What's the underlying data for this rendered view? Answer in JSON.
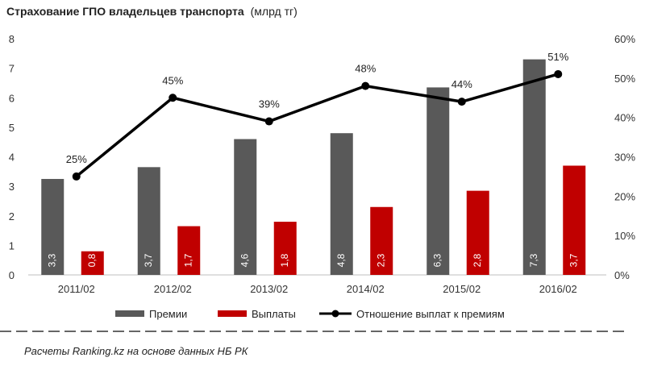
{
  "title": "Страхование  ГПО владельцев  транспорта",
  "title_unit": "(млрд тг)",
  "source": "Расчеты Ranking.kz на основе данных  НБ РК",
  "colors": {
    "premii": "#595959",
    "vyplaty": "#c00000",
    "ratio": "#000000"
  },
  "chart_data": {
    "type": "bar+line",
    "title": "Страхование  ГПО владельцев  транспорта (млрд тг)",
    "categories": [
      "2011/02",
      "2012/02",
      "2013/02",
      "2014/02",
      "2015/02",
      "2016/02"
    ],
    "series": [
      {
        "name": "Премии",
        "kind": "bar",
        "axis": "left",
        "values": [
          3.25,
          3.65,
          4.6,
          4.8,
          6.35,
          7.3
        ],
        "labels": [
          "3,3",
          "3,7",
          "4,6",
          "4,8",
          "6,3",
          "7,3"
        ]
      },
      {
        "name": "Выплаты",
        "kind": "bar",
        "axis": "left",
        "values": [
          0.8,
          1.65,
          1.8,
          2.3,
          2.85,
          3.7
        ],
        "labels": [
          "0,8",
          "1,7",
          "1,8",
          "2,3",
          "2,8",
          "3,7"
        ]
      },
      {
        "name": "Отношение выплат к премиям",
        "kind": "line",
        "axis": "right",
        "values": [
          25,
          45,
          39,
          48,
          44,
          51
        ],
        "labels": [
          "25%",
          "45%",
          "39%",
          "48%",
          "44%",
          "51%"
        ]
      }
    ],
    "y_left": {
      "min": 0,
      "max": 8,
      "ticks": [
        "0",
        "1",
        "2",
        "3",
        "4",
        "5",
        "6",
        "7",
        "8"
      ]
    },
    "y_right": {
      "min": 0,
      "max": 60,
      "ticks": [
        "0%",
        "10%",
        "20%",
        "30%",
        "40%",
        "50%",
        "60%"
      ]
    },
    "legend": [
      "Премии",
      "Выплаты",
      "Отношение выплат к премиям"
    ],
    "legend_position": "bottom",
    "grid": false
  }
}
